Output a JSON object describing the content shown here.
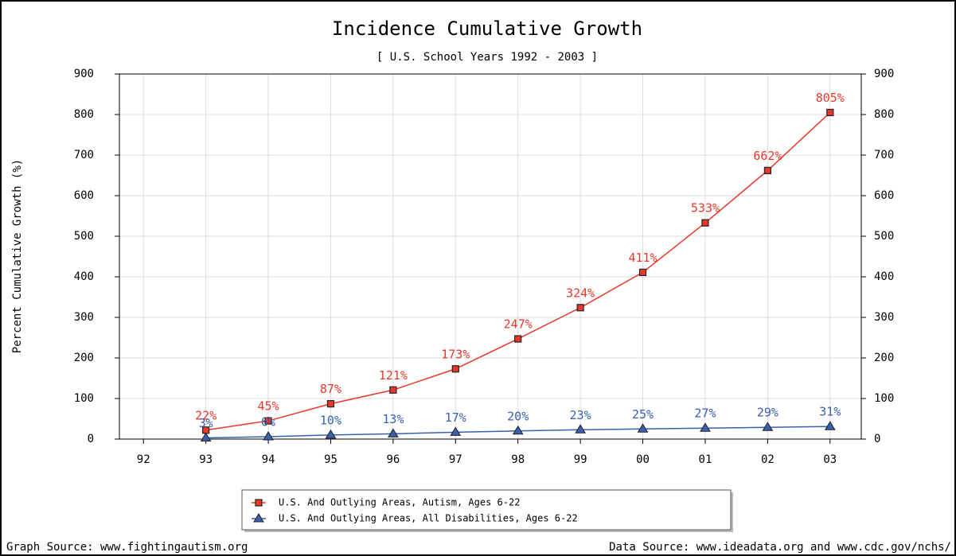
{
  "chart_data": {
    "type": "line",
    "title": "Incidence Cumulative Growth",
    "subtitle": "[ U.S. School Years 1992 - 2003 ]",
    "y_label": "Percent Cumulative Growth (%)",
    "categories": [
      "92",
      "93",
      "94",
      "95",
      "96",
      "97",
      "98",
      "99",
      "00",
      "01",
      "02",
      "03"
    ],
    "series": [
      {
        "name": "U.S. And Outlying Areas, Autism, Ages 6-22",
        "color": "#e8382b",
        "marker": "square",
        "values": [
          null,
          22,
          45,
          87,
          121,
          173,
          247,
          324,
          411,
          533,
          662,
          805
        ],
        "value_labels": [
          null,
          "22%",
          "45%",
          "87%",
          "121%",
          "173%",
          "247%",
          "324%",
          "411%",
          "533%",
          "662%",
          "805%"
        ]
      },
      {
        "name": "U.S. And Outlying Areas, All Disabilities, Ages 6-22",
        "color": "#3a5fad",
        "marker": "triangle",
        "values": [
          null,
          3,
          6,
          10,
          13,
          17,
          20,
          23,
          25,
          27,
          29,
          31
        ],
        "value_labels": [
          null,
          "3%",
          "6%",
          "10%",
          "13%",
          "17%",
          "20%",
          "23%",
          "25%",
          "27%",
          "29%",
          "31%"
        ]
      }
    ],
    "ylim": [
      0,
      900
    ],
    "yticks": [
      0,
      100,
      200,
      300,
      400,
      500,
      600,
      700,
      800,
      900
    ],
    "y2lim": [
      0,
      900
    ],
    "y2ticks": [
      0,
      100,
      200,
      300,
      400,
      500,
      600,
      700,
      800,
      900
    ],
    "grid": true,
    "legend": "bottom",
    "sources": [
      "Graph Source: www.fightingautism.org",
      "Data Source: www.ideadata.org and www.cdc.gov/nchs/"
    ]
  }
}
